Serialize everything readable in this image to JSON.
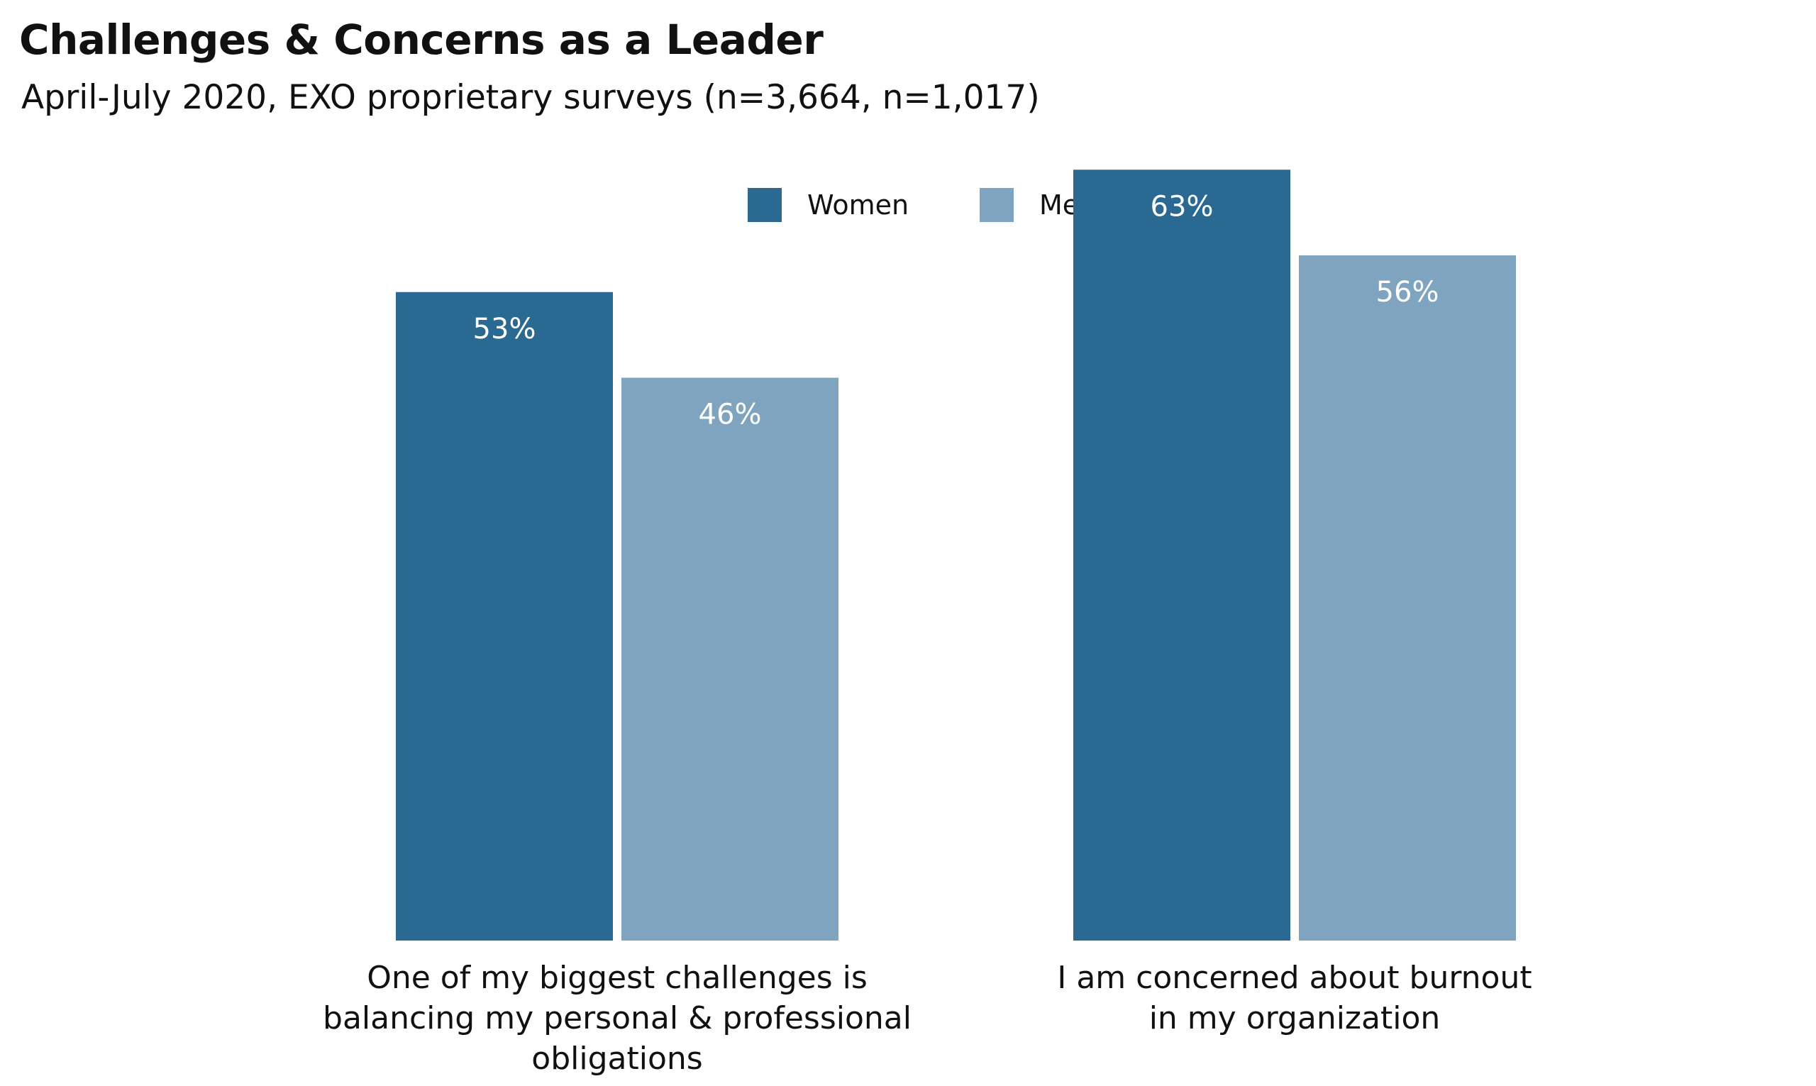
{
  "chart_data": {
    "type": "bar",
    "title": "Challenges & Concerns as a Leader",
    "subtitle": "April-July 2020, EXO proprietary surveys (n=3,664, n=1,017)",
    "categories": [
      [
        "One of my biggest challenges is",
        "balancing my personal & professional",
        "obligations"
      ],
      [
        "I am concerned about burnout",
        "in my organization"
      ]
    ],
    "series": [
      {
        "name": "Women",
        "values": [
          53,
          63
        ],
        "labels": [
          "53%",
          "63%"
        ],
        "color": "#2a6a92"
      },
      {
        "name": "Men",
        "values": [
          46,
          56
        ],
        "labels": [
          "46%",
          "56%"
        ],
        "color": "#7fa4bf"
      }
    ],
    "ylim": [
      0,
      100
    ],
    "value_unit": "%",
    "grid": false,
    "legend_position": "top-center"
  }
}
